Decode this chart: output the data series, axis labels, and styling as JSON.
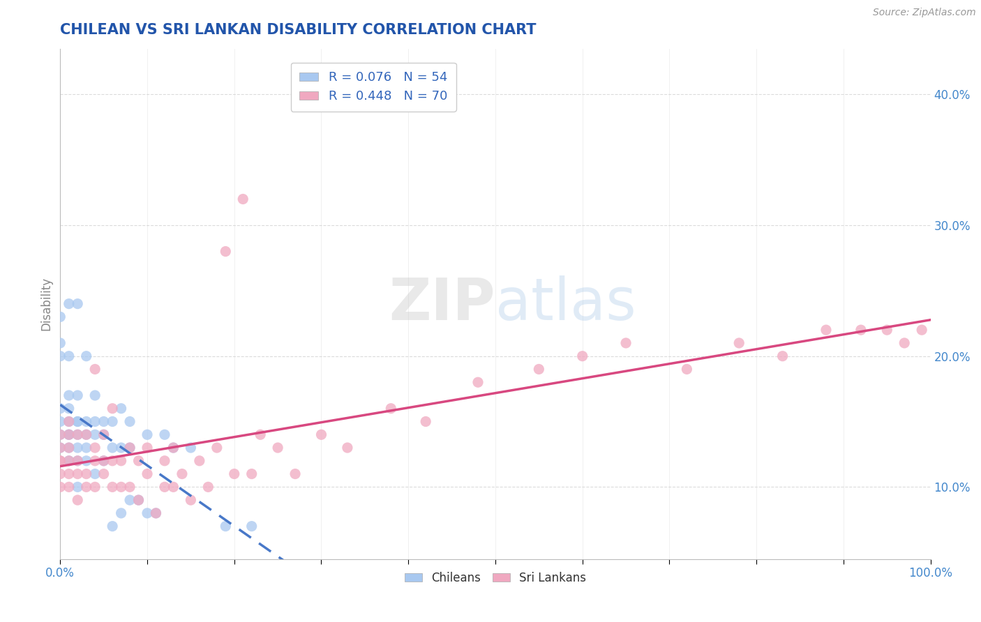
{
  "title": "CHILEAN VS SRI LANKAN DISABILITY CORRELATION CHART",
  "source": "Source: ZipAtlas.com",
  "ylabel": "Disability",
  "yticks": [
    "10.0%",
    "20.0%",
    "30.0%",
    "40.0%"
  ],
  "ytick_vals": [
    0.1,
    0.2,
    0.3,
    0.4
  ],
  "xlim": [
    0.0,
    1.0
  ],
  "ylim": [
    0.045,
    0.435
  ],
  "chilean_R": 0.076,
  "chilean_N": 54,
  "srilankan_R": 0.448,
  "srilankan_N": 70,
  "chilean_color": "#a8c8f0",
  "srilankan_color": "#f0a8c0",
  "chilean_edge_color": "#6090d0",
  "srilankan_edge_color": "#d06090",
  "chilean_trend_color": "#4878c8",
  "srilankan_trend_color": "#d84880",
  "bg_color": "#ffffff",
  "grid_color": "#cccccc",
  "title_color": "#2255aa",
  "axis_label_color": "#4488cc",
  "legend_label_color": "#3366bb",
  "watermark_zip": "ZIP",
  "watermark_atlas": "atlas",
  "chilean_scatter_x": [
    0.0,
    0.0,
    0.0,
    0.0,
    0.0,
    0.0,
    0.0,
    0.01,
    0.01,
    0.01,
    0.01,
    0.01,
    0.01,
    0.01,
    0.01,
    0.01,
    0.02,
    0.02,
    0.02,
    0.02,
    0.02,
    0.02,
    0.02,
    0.02,
    0.03,
    0.03,
    0.03,
    0.03,
    0.03,
    0.04,
    0.04,
    0.04,
    0.04,
    0.05,
    0.05,
    0.05,
    0.06,
    0.06,
    0.06,
    0.07,
    0.07,
    0.07,
    0.08,
    0.08,
    0.08,
    0.09,
    0.1,
    0.1,
    0.11,
    0.12,
    0.13,
    0.15,
    0.19,
    0.22
  ],
  "chilean_scatter_y": [
    0.13,
    0.14,
    0.15,
    0.16,
    0.2,
    0.21,
    0.23,
    0.12,
    0.13,
    0.14,
    0.14,
    0.15,
    0.16,
    0.17,
    0.2,
    0.24,
    0.1,
    0.12,
    0.13,
    0.14,
    0.15,
    0.15,
    0.17,
    0.24,
    0.12,
    0.13,
    0.14,
    0.15,
    0.2,
    0.11,
    0.14,
    0.15,
    0.17,
    0.12,
    0.14,
    0.15,
    0.07,
    0.13,
    0.15,
    0.08,
    0.13,
    0.16,
    0.09,
    0.13,
    0.15,
    0.09,
    0.08,
    0.14,
    0.08,
    0.14,
    0.13,
    0.13,
    0.07,
    0.07
  ],
  "srilankan_scatter_x": [
    0.0,
    0.0,
    0.0,
    0.0,
    0.0,
    0.0,
    0.01,
    0.01,
    0.01,
    0.01,
    0.01,
    0.01,
    0.02,
    0.02,
    0.02,
    0.02,
    0.03,
    0.03,
    0.03,
    0.04,
    0.04,
    0.04,
    0.04,
    0.05,
    0.05,
    0.05,
    0.06,
    0.06,
    0.06,
    0.07,
    0.07,
    0.08,
    0.08,
    0.09,
    0.09,
    0.1,
    0.1,
    0.11,
    0.12,
    0.12,
    0.13,
    0.13,
    0.14,
    0.15,
    0.16,
    0.17,
    0.18,
    0.19,
    0.2,
    0.21,
    0.22,
    0.23,
    0.25,
    0.27,
    0.3,
    0.33,
    0.38,
    0.42,
    0.48,
    0.55,
    0.6,
    0.65,
    0.72,
    0.78,
    0.83,
    0.88,
    0.92,
    0.95,
    0.97,
    0.99
  ],
  "srilankan_scatter_y": [
    0.1,
    0.11,
    0.12,
    0.12,
    0.13,
    0.14,
    0.1,
    0.11,
    0.12,
    0.13,
    0.14,
    0.15,
    0.09,
    0.11,
    0.12,
    0.14,
    0.1,
    0.11,
    0.14,
    0.1,
    0.12,
    0.13,
    0.19,
    0.11,
    0.12,
    0.14,
    0.1,
    0.12,
    0.16,
    0.1,
    0.12,
    0.1,
    0.13,
    0.09,
    0.12,
    0.11,
    0.13,
    0.08,
    0.1,
    0.12,
    0.1,
    0.13,
    0.11,
    0.09,
    0.12,
    0.1,
    0.13,
    0.28,
    0.11,
    0.32,
    0.11,
    0.14,
    0.13,
    0.11,
    0.14,
    0.13,
    0.16,
    0.15,
    0.18,
    0.19,
    0.2,
    0.21,
    0.19,
    0.21,
    0.2,
    0.22,
    0.22,
    0.22,
    0.21,
    0.22
  ]
}
